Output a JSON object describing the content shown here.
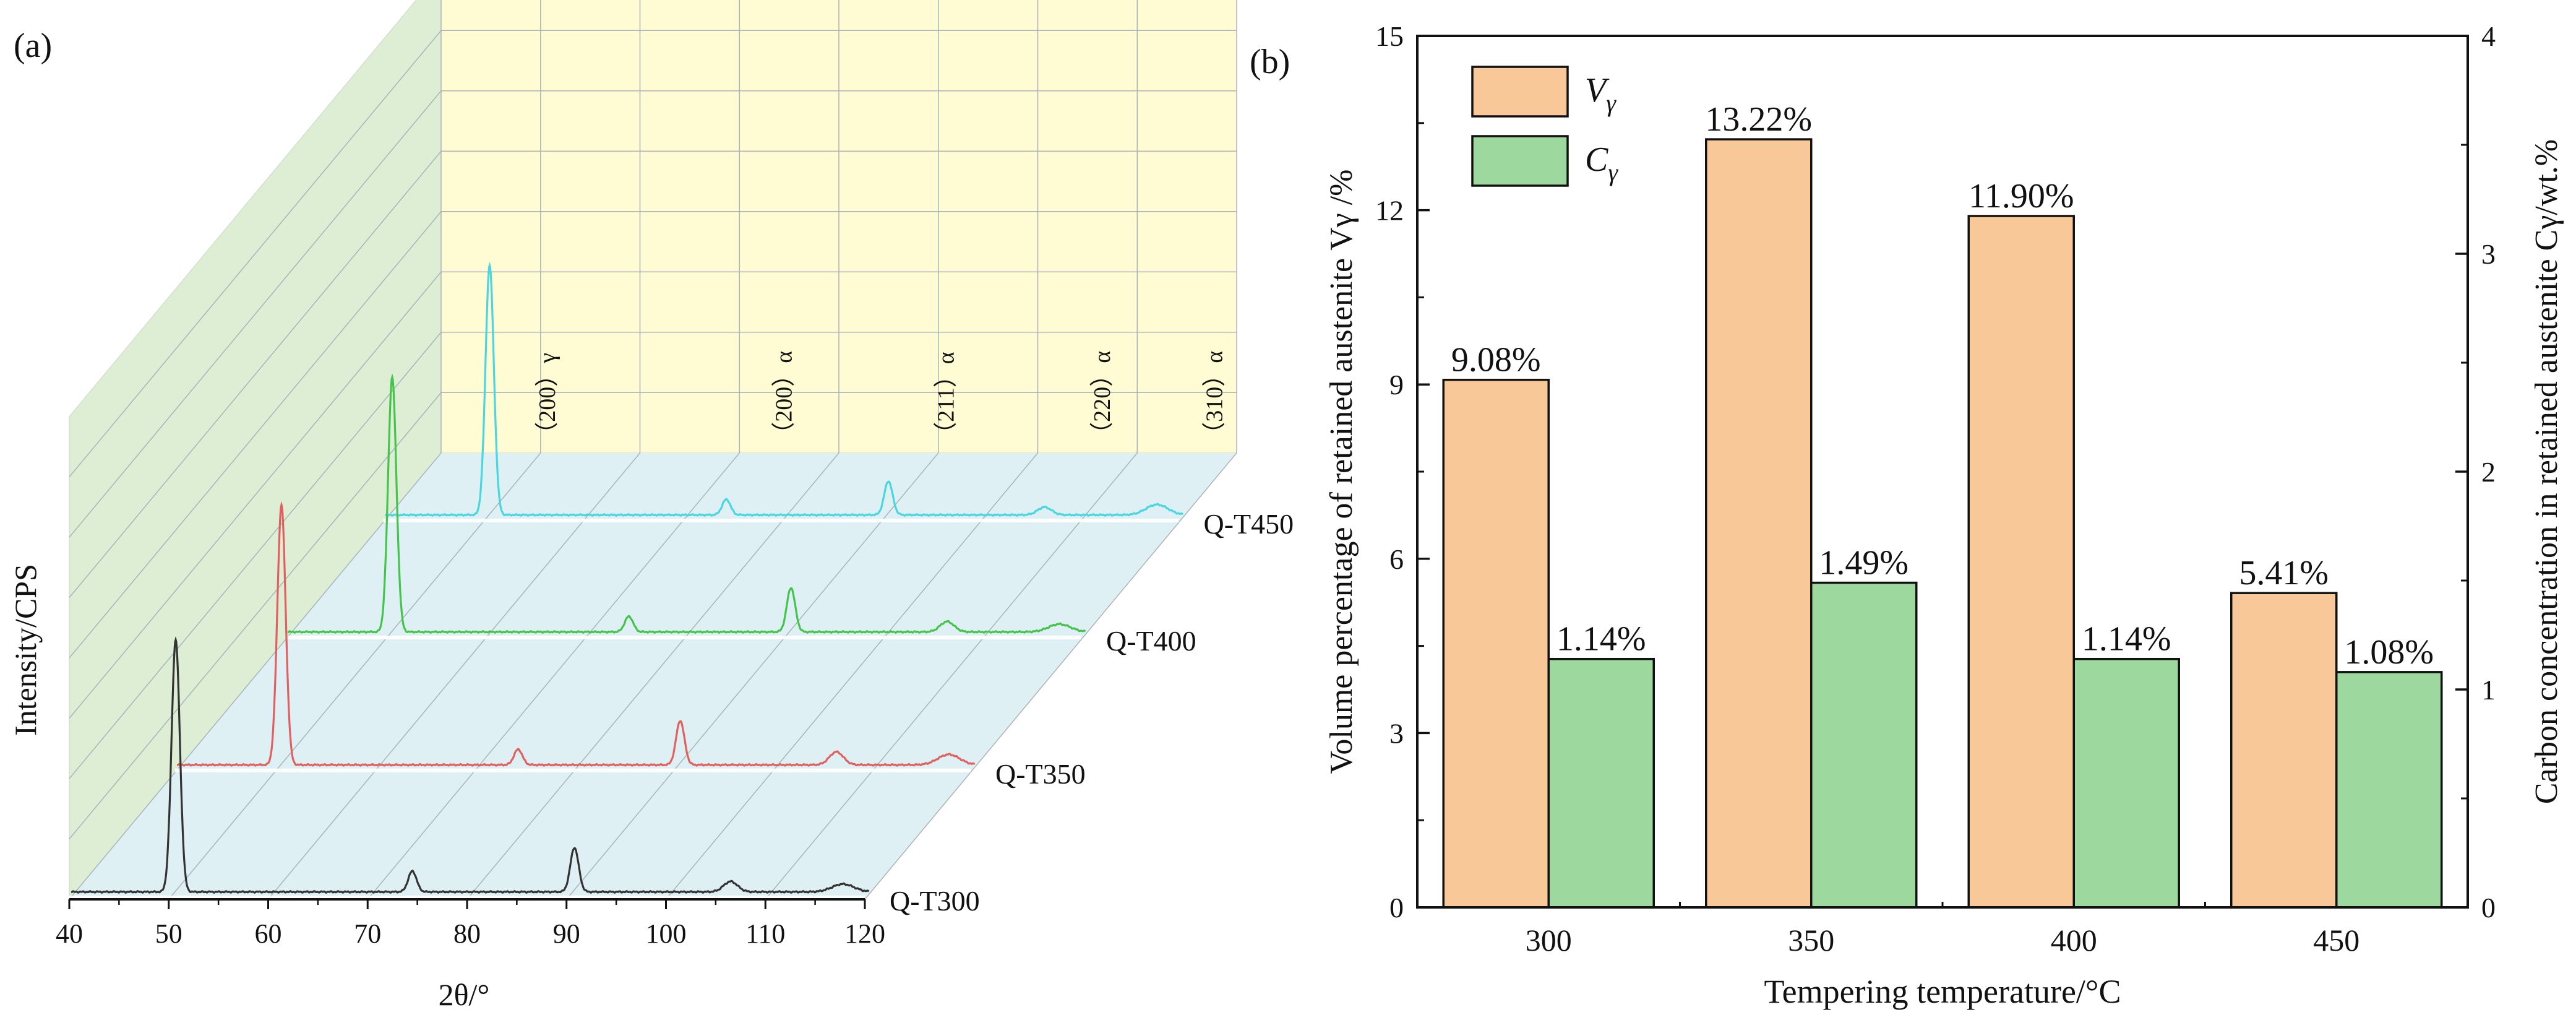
{
  "chart_data": [
    {
      "panel_label": "(a)",
      "type": "line",
      "variant": "3d-waterfall",
      "xlabel": "2θ/°",
      "ylabel": "Intensity/CPS",
      "xlim": [
        40,
        120
      ],
      "x_ticks": [
        40,
        50,
        60,
        70,
        80,
        90,
        100,
        110,
        120
      ],
      "series": [
        {
          "name": "Q-T300",
          "color": "#333333",
          "peaks": [
            {
              "x": 50.7,
              "h": 0.97
            },
            {
              "x": 74.5,
              "h": 0.08
            },
            {
              "x": 90.8,
              "h": 0.17
            },
            {
              "x": 106.5,
              "h": 0.04
            },
            {
              "x": 117.8,
              "h": 0.03
            }
          ]
        },
        {
          "name": "Q-T350",
          "color": "#e06060",
          "peaks": [
            {
              "x": 50.7,
              "h": 1.0
            },
            {
              "x": 74.5,
              "h": 0.06
            },
            {
              "x": 90.8,
              "h": 0.17
            },
            {
              "x": 106.5,
              "h": 0.05
            },
            {
              "x": 117.8,
              "h": 0.04
            }
          ]
        },
        {
          "name": "Q-T400",
          "color": "#44c44a",
          "peaks": [
            {
              "x": 50.7,
              "h": 0.98
            },
            {
              "x": 74.5,
              "h": 0.06
            },
            {
              "x": 90.8,
              "h": 0.17
            },
            {
              "x": 106.5,
              "h": 0.04
            },
            {
              "x": 117.8,
              "h": 0.03
            }
          ]
        },
        {
          "name": "Q-T450",
          "color": "#49d6e0",
          "peaks": [
            {
              "x": 50.7,
              "h": 0.96
            },
            {
              "x": 74.5,
              "h": 0.06
            },
            {
              "x": 90.8,
              "h": 0.13
            },
            {
              "x": 106.5,
              "h": 0.03
            },
            {
              "x": 117.8,
              "h": 0.04
            }
          ]
        }
      ],
      "peak_annotations": [
        {
          "label": "（200）γ",
          "x": 50.7
        },
        {
          "label": "（200）α",
          "x": 74.5
        },
        {
          "label": "（211）α",
          "x": 90.8
        },
        {
          "label": "（220）α",
          "x": 106.5
        },
        {
          "label": "（310）α",
          "x": 117.8
        }
      ],
      "colors": {
        "back_wall": "#fffbd2",
        "side_wall": "#ddeed5",
        "floor": "#dff0f5",
        "gridline": "#a9b4b8"
      }
    },
    {
      "panel_label": "(b)",
      "type": "bar",
      "xlabel": "Tempering temperature/°C",
      "ylabel": "Volume percentage of retained austenite Vγ /%",
      "y2label": "Carbon concentration in retained austenite Cγ/wt.%",
      "categories": [
        "300",
        "350",
        "400",
        "450"
      ],
      "ylim": [
        0,
        15
      ],
      "y_ticks": [
        "0",
        "3",
        "6",
        "9",
        "12",
        "15"
      ],
      "y2lim": [
        0,
        4
      ],
      "y2_ticks": [
        "0",
        "1",
        "2",
        "3",
        "4"
      ],
      "series": [
        {
          "name": "Vγ",
          "axis": "left",
          "color": "#f9c898",
          "values": [
            9.08,
            13.22,
            11.9,
            5.41
          ],
          "labels": [
            "9.08%",
            "13.22%",
            "11.90%",
            "5.41%"
          ]
        },
        {
          "name": "Cγ",
          "axis": "right",
          "color": "#9dd89e",
          "values": [
            1.14,
            1.49,
            1.14,
            1.08
          ],
          "labels": [
            "1.14%",
            "1.49%",
            "1.14%",
            "1.08%"
          ]
        }
      ],
      "legend": {
        "placement": "top-left",
        "items": [
          {
            "main": "V",
            "sub": "γ",
            "color": "#f9c898"
          },
          {
            "main": "C",
            "sub": "γ",
            "color": "#9dd89e"
          }
        ]
      }
    }
  ]
}
